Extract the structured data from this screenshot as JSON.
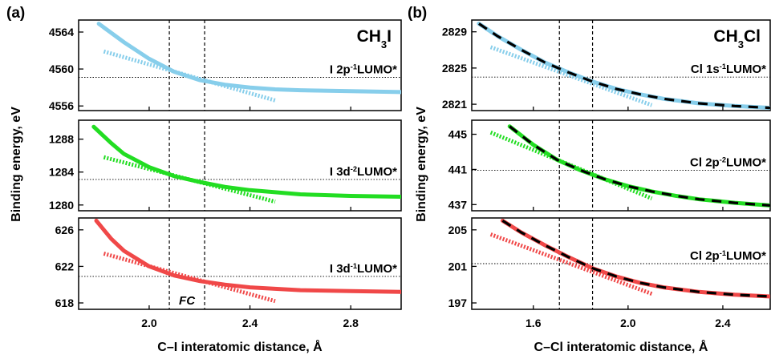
{
  "chart_data": [
    {
      "panel_label": "(a)",
      "type": "line",
      "molecule": {
        "base": "CH",
        "sub": "3",
        "rest": "I"
      },
      "xlabel": "C–I interatomic distance, Å",
      "ylabel": "Binding energy, eV",
      "xlim": [
        1.72,
        3.0
      ],
      "xticks": [
        2.0,
        2.4,
        2.8
      ],
      "xtick_labels": [
        "2.0",
        "2.4",
        "2.8"
      ],
      "vlines": [
        2.08,
        2.22
      ],
      "fc_label": "FC",
      "subplots": [
        {
          "state": {
            "pre": "I 2p",
            "sup": "-1",
            "post": "LUMO*"
          },
          "color": "#87CEEB",
          "ylim": [
            4555.5,
            4565.3
          ],
          "yticks": [
            4556,
            4560,
            4564
          ],
          "ref_energy": 4559.1,
          "curve": [
            [
              1.8,
              4564.9
            ],
            [
              1.9,
              4562.9
            ],
            [
              2.0,
              4561.1
            ],
            [
              2.1,
              4559.7
            ],
            [
              2.2,
              4558.8
            ],
            [
              2.3,
              4558.3
            ],
            [
              2.4,
              4558.0
            ],
            [
              2.5,
              4557.8
            ],
            [
              2.6,
              4557.7
            ],
            [
              2.8,
              4557.6
            ],
            [
              3.0,
              4557.5
            ]
          ],
          "slope": [
            [
              1.82,
              4561.9
            ],
            [
              2.5,
              4556.6
            ]
          ]
        },
        {
          "state": {
            "pre": "I 3d",
            "sup": "-2",
            "post": "LUMO*"
          },
          "color": "#22DD22",
          "ylim": [
            1279.3,
            1290.3
          ],
          "yticks": [
            1280,
            1284,
            1288
          ],
          "ref_energy": 1283.1,
          "curve": [
            [
              1.78,
              1289.5
            ],
            [
              1.85,
              1287.5
            ],
            [
              1.9,
              1286.2
            ],
            [
              2.0,
              1284.6
            ],
            [
              2.1,
              1283.5
            ],
            [
              2.2,
              1282.8
            ],
            [
              2.3,
              1282.2
            ],
            [
              2.4,
              1281.8
            ],
            [
              2.6,
              1281.3
            ],
            [
              2.8,
              1281.1
            ],
            [
              3.0,
              1281.0
            ]
          ],
          "slope": [
            [
              1.82,
              1285.8
            ],
            [
              2.5,
              1280.4
            ]
          ]
        },
        {
          "state": {
            "pre": "I 3d",
            "sup": "-1",
            "post": "LUMO*"
          },
          "color": "#F04848",
          "ylim": [
            617.3,
            627.3
          ],
          "yticks": [
            618,
            622,
            626
          ],
          "ref_energy": 620.9,
          "curve": [
            [
              1.79,
              627.0
            ],
            [
              1.85,
              625.0
            ],
            [
              1.9,
              623.7
            ],
            [
              2.0,
              622.0
            ],
            [
              2.1,
              621.0
            ],
            [
              2.2,
              620.4
            ],
            [
              2.3,
              620.0
            ],
            [
              2.4,
              619.7
            ],
            [
              2.6,
              619.4
            ],
            [
              2.8,
              619.3
            ],
            [
              3.0,
              619.2
            ]
          ],
          "slope": [
            [
              1.82,
              623.4
            ],
            [
              2.5,
              618.2
            ]
          ]
        }
      ]
    },
    {
      "panel_label": "(b)",
      "type": "line",
      "molecule": {
        "base": "CH",
        "sub": "3",
        "rest": "Cl"
      },
      "xlabel": "C–Cl interatomic distance, Å",
      "ylabel": "Binding energy, eV",
      "xlim": [
        1.34,
        2.6
      ],
      "xticks": [
        1.6,
        2.0,
        2.4
      ],
      "xtick_labels": [
        "1.6",
        "2.0",
        "2.4"
      ],
      "vlines": [
        1.71,
        1.85
      ],
      "subplots": [
        {
          "state": {
            "pre": "Cl 1s",
            "sup": "-1",
            "post": "LUMO*"
          },
          "color": "#87CEEB",
          "ylim": [
            2820.3,
            2830.3
          ],
          "yticks": [
            2821,
            2825,
            2829
          ],
          "ref_energy": 2824.0,
          "curve": [
            [
              1.37,
              2829.9
            ],
            [
              1.45,
              2828.5
            ],
            [
              1.55,
              2827.0
            ],
            [
              1.65,
              2825.6
            ],
            [
              1.75,
              2824.5
            ],
            [
              1.85,
              2823.5
            ],
            [
              1.95,
              2822.7
            ],
            [
              2.05,
              2822.1
            ],
            [
              2.15,
              2821.6
            ],
            [
              2.3,
              2821.1
            ],
            [
              2.45,
              2820.8
            ],
            [
              2.6,
              2820.6
            ]
          ],
          "slope": [
            [
              1.42,
              2827.3
            ],
            [
              2.1,
              2820.9
            ]
          ]
        },
        {
          "state": {
            "pre": "Cl 2p",
            "sup": "-2",
            "post": "LUMO*"
          },
          "color": "#22DD22",
          "ylim": [
            436.3,
            446.6
          ],
          "yticks": [
            437,
            441,
            445
          ],
          "ref_energy": 440.9,
          "curve": [
            [
              1.5,
              445.9
            ],
            [
              1.6,
              443.8
            ],
            [
              1.7,
              442.1
            ],
            [
              1.8,
              440.9
            ],
            [
              1.9,
              439.9
            ],
            [
              2.0,
              439.1
            ],
            [
              2.1,
              438.5
            ],
            [
              2.2,
              438.0
            ],
            [
              2.3,
              437.6
            ],
            [
              2.45,
              437.2
            ],
            [
              2.6,
              436.9
            ]
          ],
          "slope": [
            [
              1.42,
              445.2
            ],
            [
              2.1,
              437.7
            ]
          ]
        },
        {
          "state": {
            "pre": "Cl 2p",
            "sup": "-1",
            "post": "LUMO*"
          },
          "color": "#F04848",
          "ylim": [
            196.3,
            206.3
          ],
          "yticks": [
            197,
            201,
            205
          ],
          "ref_energy": 201.3,
          "curve": [
            [
              1.47,
              206.0
            ],
            [
              1.55,
              204.7
            ],
            [
              1.65,
              203.3
            ],
            [
              1.75,
              202.0
            ],
            [
              1.85,
              200.8
            ],
            [
              1.95,
              199.9
            ],
            [
              2.05,
              199.2
            ],
            [
              2.15,
              198.7
            ],
            [
              2.3,
              198.2
            ],
            [
              2.45,
              197.9
            ],
            [
              2.6,
              197.7
            ]
          ],
          "slope": [
            [
              1.42,
              204.5
            ],
            [
              2.1,
              198.0
            ]
          ]
        }
      ]
    }
  ]
}
